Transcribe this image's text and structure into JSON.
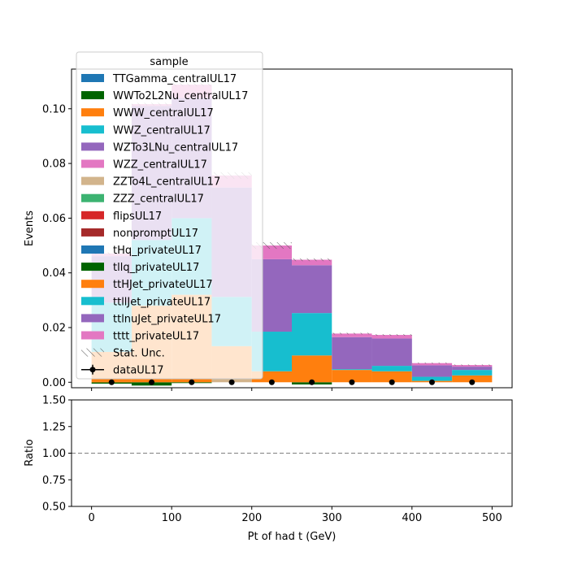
{
  "chart_data": [
    {
      "type": "bar",
      "stacked": true,
      "title": "",
      "xlabel": "",
      "ylabel": "Events",
      "xlim": [
        -25,
        525
      ],
      "ylim": [
        -0.002,
        0.1145
      ],
      "bin_edges": [
        0,
        50,
        100,
        150,
        200,
        250,
        300,
        350,
        400,
        450,
        500
      ],
      "yticks": [
        0.0,
        0.02,
        0.04,
        0.06,
        0.08,
        0.1
      ],
      "ytick_labels": [
        "0.00",
        "0.02",
        "0.04",
        "0.06",
        "0.08",
        "0.10"
      ],
      "legend": {
        "title": "sample",
        "placement": "top-left"
      },
      "series": [
        {
          "name": "TTGamma_centralUL17",
          "color": "#1f77b4",
          "values": [
            0,
            0,
            0,
            0,
            0,
            0,
            0,
            0,
            0,
            0
          ]
        },
        {
          "name": "WWTo2L2Nu_centralUL17",
          "color": "#006400",
          "values": [
            -0.0005,
            -0.0012,
            -0.0003,
            0,
            0,
            -0.0008,
            0,
            0,
            0,
            0
          ]
        },
        {
          "name": "WWW_centralUL17",
          "color": "#ff7f0e",
          "values": [
            0.0001,
            0,
            0,
            0,
            0,
            0,
            0,
            0,
            0,
            0
          ]
        },
        {
          "name": "WWZ_centralUL17",
          "color": "#17becf",
          "values": [
            0,
            0,
            0,
            0,
            0,
            0,
            0,
            0,
            0,
            0
          ]
        },
        {
          "name": "WZTo3LNu_centralUL17",
          "color": "#9467bd",
          "values": [
            0,
            0,
            0,
            0,
            0,
            0,
            0,
            0,
            0,
            0
          ]
        },
        {
          "name": "WZZ_centralUL17",
          "color": "#e377c2",
          "values": [
            0,
            0,
            0,
            0,
            0,
            0,
            0,
            0,
            0,
            0
          ]
        },
        {
          "name": "ZZTo4L_centralUL17",
          "color": "#d2b48c",
          "values": [
            0,
            0,
            0,
            0.0012,
            0,
            0,
            0,
            0,
            0,
            0
          ]
        },
        {
          "name": "ZZZ_centralUL17",
          "color": "#3cb371",
          "values": [
            0,
            0,
            0,
            0,
            0,
            0,
            0,
            0,
            0,
            0
          ]
        },
        {
          "name": "flipsUL17",
          "color": "#d62728",
          "values": [
            0,
            0,
            0,
            0,
            0,
            0,
            0,
            0,
            0,
            0
          ]
        },
        {
          "name": "nonpromptUL17",
          "color": "#a52a2a",
          "values": [
            0,
            0,
            0,
            0,
            0,
            0,
            0,
            0,
            0,
            0
          ]
        },
        {
          "name": "tHq_privateUL17",
          "color": "#1f77b4",
          "values": [
            0,
            0,
            0,
            0,
            0,
            0,
            0,
            0,
            0,
            0
          ]
        },
        {
          "name": "tllq_privateUL17",
          "color": "#006400",
          "values": [
            0,
            0,
            0,
            0,
            0,
            0,
            0,
            0,
            0,
            0
          ]
        },
        {
          "name": "ttHJet_privateUL17",
          "color": "#ff7f0e",
          "values": [
            0.011,
            0.028,
            0.032,
            0.012,
            0.004,
            0.0098,
            0.0045,
            0.004,
            0.0005,
            0.0025
          ]
        },
        {
          "name": "ttllJet_privateUL17",
          "color": "#17becf",
          "values": [
            0.018,
            0.024,
            0.028,
            0.018,
            0.0145,
            0.0155,
            0.0003,
            0.002,
            0.0015,
            0.002
          ]
        },
        {
          "name": "ttlnuJet_privateUL17",
          "color": "#9467bd",
          "values": [
            0.017,
            0.049,
            0.044,
            0.04,
            0.0265,
            0.0175,
            0.0117,
            0.01,
            0.0042,
            0.0012
          ]
        },
        {
          "name": "tttt_privateUL17",
          "color": "#e377c2",
          "values": [
            0.001,
            0.0007,
            0.0048,
            0.0044,
            0.005,
            0.002,
            0.0013,
            0.0013,
            0.0008,
            0.0006
          ]
        }
      ],
      "stat_unc": {
        "name": "Stat. Unc.",
        "halfwidth": [
          0.0004,
          0.0005,
          0.0006,
          0.0012,
          0.0012,
          0.0005,
          0.0003,
          0.0003,
          0.0002,
          0.0002
        ]
      },
      "data_points": {
        "name": "dataUL17",
        "x": [
          25,
          75,
          125,
          175,
          225,
          275,
          325,
          375,
          425,
          475
        ],
        "y": [
          0,
          0,
          0,
          0,
          0,
          0,
          0,
          0,
          0,
          0
        ]
      }
    },
    {
      "type": "line",
      "title": "",
      "xlabel": "Pt of had t (GeV)",
      "ylabel": "Ratio",
      "xlim": [
        -25,
        525
      ],
      "ylim": [
        0.5,
        1.5
      ],
      "yticks": [
        0.5,
        0.75,
        1.0,
        1.25,
        1.5
      ],
      "ytick_labels": [
        "0.50",
        "0.75",
        "1.00",
        "1.25",
        "1.50"
      ],
      "xticks": [
        0,
        100,
        200,
        300,
        400,
        500
      ],
      "xtick_labels": [
        "0",
        "100",
        "200",
        "300",
        "400",
        "500"
      ],
      "reference_line": 1.0
    }
  ]
}
